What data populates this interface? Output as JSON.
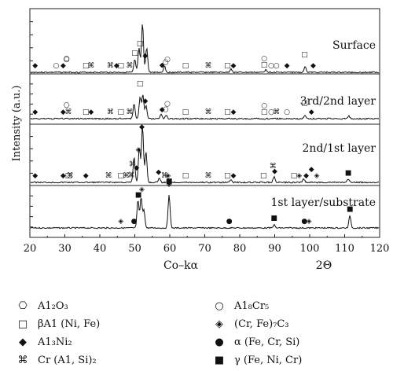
{
  "chart_data": {
    "type": "line",
    "xlabel_left": "Co–kα",
    "xlabel_right": "2Θ",
    "ylabel": "Intensity (a.u.)",
    "xlim": [
      20,
      120
    ],
    "x_ticks": [
      20,
      30,
      40,
      50,
      60,
      70,
      80,
      90,
      100,
      110,
      120
    ],
    "grid": false,
    "series": [
      {
        "name": "Surface",
        "peaks": [
          {
            "x": 50.0,
            "h": 0.2
          },
          {
            "x": 51.2,
            "h": 0.38
          },
          {
            "x": 52.2,
            "h": 0.78
          },
          {
            "x": 53.4,
            "h": 0.4
          },
          {
            "x": 58.5,
            "h": 0.1
          },
          {
            "x": 77.5,
            "h": 0.06
          },
          {
            "x": 87.5,
            "h": 0.05
          },
          {
            "x": 98.7,
            "h": 0.1
          }
        ],
        "markers": [
          {
            "x": 21.5,
            "sym": "diamond"
          },
          {
            "x": 27.5,
            "sym": "circle"
          },
          {
            "x": 29.5,
            "sym": "diamond"
          },
          {
            "x": 30.5,
            "sym": "al2o3"
          },
          {
            "x": 30.5,
            "sym": "circle-up"
          },
          {
            "x": 36.0,
            "sym": "square"
          },
          {
            "x": 37.5,
            "sym": "cross"
          },
          {
            "x": 43.0,
            "sym": "cross"
          },
          {
            "x": 44.8,
            "sym": "diamond"
          },
          {
            "x": 46.0,
            "sym": "square"
          },
          {
            "x": 48.5,
            "sym": "cross"
          },
          {
            "x": 50.0,
            "sym": "square"
          },
          {
            "x": 51.5,
            "sym": "square-up"
          },
          {
            "x": 53.0,
            "sym": "diamond"
          },
          {
            "x": 57.8,
            "sym": "diamond"
          },
          {
            "x": 58.8,
            "sym": "circle"
          },
          {
            "x": 59.3,
            "sym": "circle-up"
          },
          {
            "x": 64.5,
            "sym": "square"
          },
          {
            "x": 71.0,
            "sym": "cross"
          },
          {
            "x": 76.5,
            "sym": "square"
          },
          {
            "x": 78.2,
            "sym": "diamond"
          },
          {
            "x": 87.0,
            "sym": "square"
          },
          {
            "x": 87.0,
            "sym": "circle-up"
          },
          {
            "x": 89.0,
            "sym": "circle"
          },
          {
            "x": 90.5,
            "sym": "circle"
          },
          {
            "x": 93.5,
            "sym": "diamond"
          },
          {
            "x": 98.5,
            "sym": "square-up"
          },
          {
            "x": 101.0,
            "sym": "diamond"
          }
        ]
      },
      {
        "name": "3rd/2nd layer",
        "peaks": [
          {
            "x": 49.8,
            "h": 0.35
          },
          {
            "x": 51.5,
            "h": 0.5
          },
          {
            "x": 52.3,
            "h": 0.55
          },
          {
            "x": 53.2,
            "h": 0.3
          },
          {
            "x": 57.5,
            "h": 0.1
          },
          {
            "x": 59.0,
            "h": 0.08
          },
          {
            "x": 98.7,
            "h": 0.08
          },
          {
            "x": 111.2,
            "h": 0.06
          }
        ],
        "markers": [
          {
            "x": 21.5,
            "sym": "diamond"
          },
          {
            "x": 29.5,
            "sym": "diamond"
          },
          {
            "x": 30.5,
            "sym": "al2o3"
          },
          {
            "x": 31.0,
            "sym": "cross"
          },
          {
            "x": 36.0,
            "sym": "square"
          },
          {
            "x": 37.5,
            "sym": "diamond"
          },
          {
            "x": 43.0,
            "sym": "cross"
          },
          {
            "x": 46.0,
            "sym": "square"
          },
          {
            "x": 48.5,
            "sym": "cross"
          },
          {
            "x": 51.5,
            "sym": "square-up"
          },
          {
            "x": 53.0,
            "sym": "diamond"
          },
          {
            "x": 57.8,
            "sym": "diamond"
          },
          {
            "x": 58.8,
            "sym": "circle"
          },
          {
            "x": 59.3,
            "sym": "circle-up"
          },
          {
            "x": 64.5,
            "sym": "square"
          },
          {
            "x": 71.0,
            "sym": "cross"
          },
          {
            "x": 76.5,
            "sym": "square"
          },
          {
            "x": 78.2,
            "sym": "diamond"
          },
          {
            "x": 87.0,
            "sym": "square"
          },
          {
            "x": 87.0,
            "sym": "circle-up"
          },
          {
            "x": 89.0,
            "sym": "circle"
          },
          {
            "x": 90.5,
            "sym": "cross"
          },
          {
            "x": 93.5,
            "sym": "circle"
          },
          {
            "x": 98.5,
            "sym": "square-up"
          },
          {
            "x": 100.5,
            "sym": "diamond"
          }
        ]
      },
      {
        "name": "2nd/1st layer",
        "peaks": [
          {
            "x": 49.8,
            "h": 0.45
          },
          {
            "x": 51.3,
            "h": 0.62
          },
          {
            "x": 52.2,
            "h": 1.0
          },
          {
            "x": 53.2,
            "h": 0.55
          },
          {
            "x": 57.0,
            "h": 0.08
          },
          {
            "x": 77.5,
            "h": 0.05
          },
          {
            "x": 89.8,
            "h": 0.1
          },
          {
            "x": 98.3,
            "h": 0.06
          },
          {
            "x": 111.0,
            "h": 0.05
          }
        ],
        "markers": [
          {
            "x": 21.5,
            "sym": "diamond"
          },
          {
            "x": 29.5,
            "sym": "diamond"
          },
          {
            "x": 31.0,
            "sym": "square"
          },
          {
            "x": 31.5,
            "sym": "cross"
          },
          {
            "x": 36.0,
            "sym": "diamond"
          },
          {
            "x": 42.5,
            "sym": "cross"
          },
          {
            "x": 46.0,
            "sym": "square"
          },
          {
            "x": 47.5,
            "sym": "cross"
          },
          {
            "x": 49.0,
            "sym": "cross"
          },
          {
            "x": 49.3,
            "sym": "cross-up"
          },
          {
            "x": 50.5,
            "sym": "diamond-up"
          },
          {
            "x": 51.0,
            "sym": "phase-up"
          },
          {
            "x": 52.0,
            "sym": "diamond-top"
          },
          {
            "x": 56.8,
            "sym": "diamond"
          },
          {
            "x": 58.5,
            "sym": "cross"
          },
          {
            "x": 59.5,
            "sym": "phase"
          },
          {
            "x": 64.5,
            "sym": "square"
          },
          {
            "x": 71.0,
            "sym": "cross"
          },
          {
            "x": 76.5,
            "sym": "square"
          },
          {
            "x": 78.2,
            "sym": "diamond"
          },
          {
            "x": 86.8,
            "sym": "square"
          },
          {
            "x": 89.5,
            "sym": "cross-up"
          },
          {
            "x": 90.0,
            "sym": "diamond"
          },
          {
            "x": 95.5,
            "sym": "square"
          },
          {
            "x": 97.0,
            "sym": "phase"
          },
          {
            "x": 99.0,
            "sym": "diamond"
          },
          {
            "x": 100.5,
            "sym": "diamond-up"
          },
          {
            "x": 102.0,
            "sym": "phase"
          },
          {
            "x": 111.0,
            "sym": "filled-square"
          }
        ]
      },
      {
        "name": "1st layer/substrate",
        "peaks": [
          {
            "x": 50.9,
            "h": 0.45
          },
          {
            "x": 51.8,
            "h": 0.5
          },
          {
            "x": 52.6,
            "h": 0.3
          },
          {
            "x": 59.8,
            "h": 0.55
          },
          {
            "x": 89.8,
            "h": 0.05
          },
          {
            "x": 111.5,
            "h": 0.2
          }
        ],
        "markers": [
          {
            "x": 46.0,
            "sym": "phase"
          },
          {
            "x": 49.8,
            "sym": "dot"
          },
          {
            "x": 51.0,
            "sym": "filled-square"
          },
          {
            "x": 52.0,
            "sym": "phase-up"
          },
          {
            "x": 59.8,
            "sym": "phase-top"
          },
          {
            "x": 59.8,
            "sym": "filled-square-up"
          },
          {
            "x": 77.0,
            "sym": "dot"
          },
          {
            "x": 89.8,
            "sym": "filled-square"
          },
          {
            "x": 98.5,
            "sym": "dot"
          },
          {
            "x": 99.8,
            "sym": "phase"
          },
          {
            "x": 111.5,
            "sym": "filled-square"
          }
        ]
      }
    ]
  },
  "legend": [
    {
      "sym": "⎔",
      "label": "A1₂O₃"
    },
    {
      "sym": "○",
      "label": "A1₈Cr₅"
    },
    {
      "sym": "□",
      "label": "βA1 (Ni, Fe)"
    },
    {
      "sym": "◈",
      "label": "(Cr, Fe)₇C₃"
    },
    {
      "sym": "◆",
      "label": "A1₃Ni₂"
    },
    {
      "sym": "●",
      "label": "α (Fe, Cr, Si)"
    },
    {
      "sym": "⌘",
      "label": "Cr (A1, Si)₂"
    },
    {
      "sym": "■",
      "label": "γ (Fe, Ni, Cr)"
    }
  ]
}
